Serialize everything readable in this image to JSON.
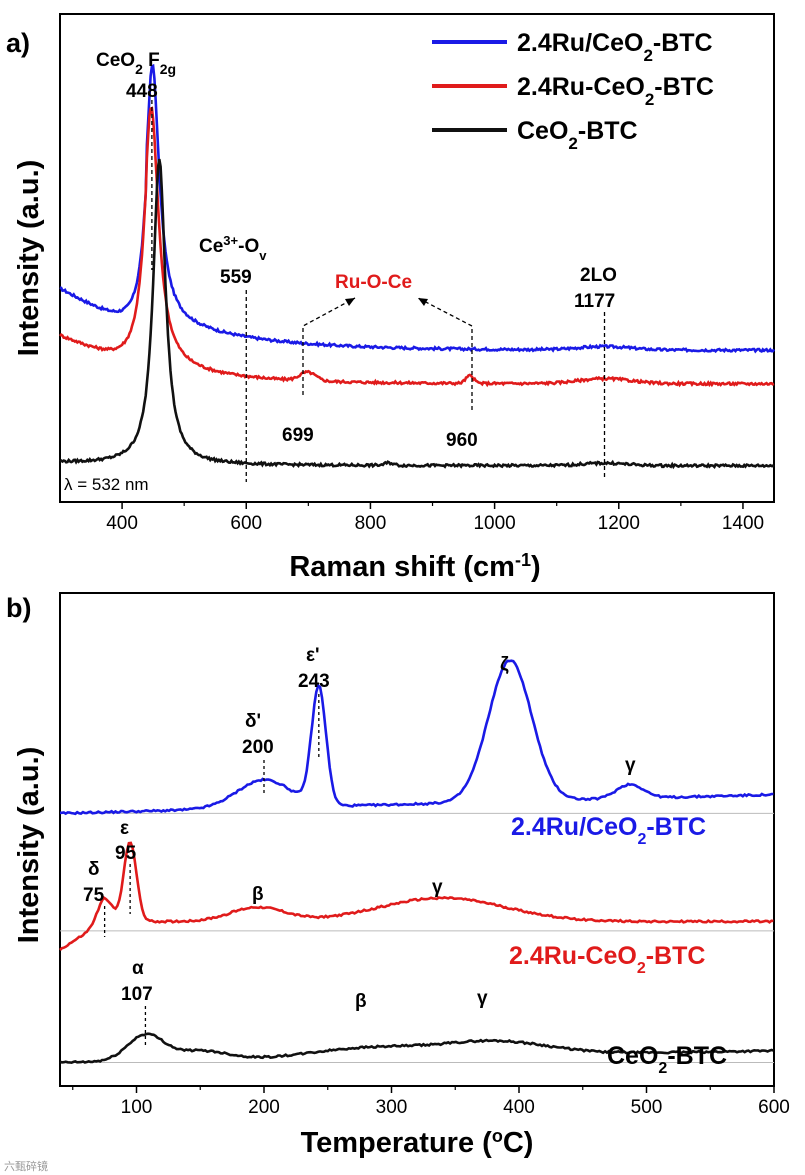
{
  "colors": {
    "blue": "#1a1ae6",
    "red": "#e01b1b",
    "black": "#111111",
    "redtext": "#e01b1b"
  },
  "watermark": "六甄碎镜",
  "chart_data": [
    {
      "panel_label": "a)",
      "type": "line",
      "xlabel": "Raman shift (cm",
      "xlabel_sup": "-1",
      "xlabel_end": ")",
      "ylabel": "Intensity (a.u.)",
      "xlim": [
        300,
        1450
      ],
      "xticks": [
        400,
        600,
        800,
        1000,
        1200,
        1400
      ],
      "ylim": [
        0,
        1
      ],
      "lambda_note": "λ = 532 nm",
      "legend": [
        {
          "main": "2.4Ru/CeO",
          "sub": "2",
          "end": "-BTC",
          "color": "blue"
        },
        {
          "main": "2.4Ru-CeO",
          "sub": "2",
          "end": "-BTC",
          "color": "red"
        },
        {
          "main": "CeO",
          "sub": "2",
          "end": "-BTC",
          "color": "black"
        }
      ],
      "series": [
        {
          "name": "2.4Ru/CeO2-BTC",
          "color": "blue",
          "baseline": 0.29,
          "tail": 0.22,
          "tailx": 620,
          "peaks": [
            [
              449,
              0.6,
              13
            ]
          ],
          "bumps": [
            [
              1177,
              0.008,
              60
            ]
          ]
        },
        {
          "name": "2.4Ru-CeO2-BTC",
          "color": "red",
          "baseline": 0.21,
          "tail": 0.17,
          "tailx": 560,
          "peaks": [
            [
              447,
              0.61,
              14
            ]
          ],
          "bumps": [
            [
              699,
              0.02,
              18
            ],
            [
              960,
              0.018,
              9
            ],
            [
              1177,
              0.012,
              60
            ]
          ]
        },
        {
          "name": "CeO2-BTC",
          "color": "black",
          "baseline": 0.015,
          "tail": 0.01,
          "tailx": 560,
          "peaks": [
            [
              460,
              0.73,
              12
            ]
          ],
          "bumps": [
            [
              830,
              0.006,
              10
            ],
            [
              1177,
              0.006,
              50
            ]
          ]
        }
      ],
      "annotations": {
        "ceo2": {
          "pre": "CeO",
          "sub": "2",
          "mid": " F",
          "sub2": "2g",
          "value": "448"
        },
        "ce3": {
          "pre": "Ce",
          "sup": "3+",
          "mid": "-O",
          "sub": "v",
          "value": "559"
        },
        "ruoce": "Ru-O-Ce",
        "p699": "699",
        "p960": "960",
        "lo": "2LO",
        "lo_val": "1177"
      }
    },
    {
      "panel_label": "b)",
      "type": "line",
      "xlabel": "Temperature (",
      "xlabel_sup": "o",
      "xlabel_end": "C)",
      "ylabel": "Intensity (a.u.)",
      "xlim": [
        40,
        600
      ],
      "xticks": [
        100,
        200,
        300,
        400,
        500,
        600
      ],
      "ylim": [
        0,
        1
      ],
      "series": [
        {
          "name": "2.4Ru/CeO2-BTC",
          "color": "blue",
          "offset": 0.58,
          "peaks": [
            [
              243,
              0.25,
              8
            ],
            [
              393,
              0.3,
              24
            ],
            [
              200,
              0.06,
              30
            ],
            [
              487,
              0.03,
              15
            ]
          ],
          "ramp": [
            [
              40,
              0
            ],
            [
              600,
              0.04
            ]
          ]
        },
        {
          "name": "2.4Ru-CeO2-BTC",
          "color": "red",
          "offset": 0.33,
          "peaks": [
            [
              95,
              0.17,
              7
            ],
            [
              75,
              0.05,
              8
            ],
            [
              195,
              0.03,
              30
            ],
            [
              340,
              0.05,
              70
            ]
          ],
          "ramp": [
            [
              40,
              -0.04
            ],
            [
              75,
              0.02
            ]
          ]
        },
        {
          "name": "CeO2-BTC",
          "color": "black",
          "offset": 0.05,
          "peaks": [
            [
              107,
              0.055,
              20
            ],
            [
              150,
              0.02,
              30
            ],
            [
              280,
              0.02,
              60
            ],
            [
              380,
              0.03,
              60
            ]
          ],
          "ramp": [
            [
              40,
              0
            ],
            [
              600,
              0.025
            ]
          ]
        }
      ],
      "annotations": {
        "blue_name": {
          "main": "2.4Ru/CeO",
          "sub": "2",
          "end": "-BTC"
        },
        "red_name": {
          "main": "2.4Ru-CeO",
          "sub": "2",
          "end": "-BTC"
        },
        "black_name": {
          "main": "CeO",
          "sub": "2",
          "end": "-BTC"
        },
        "d_prime": "δ'",
        "d_prime_val": "200",
        "e_prime": "ε'",
        "e_prime_val": "243",
        "zeta": "ζ",
        "gamma_blue": "γ",
        "delta": "δ",
        "delta_val": "75",
        "eps": "ε",
        "eps_val": "95",
        "beta_red": "β",
        "gamma_red": "γ",
        "alpha": "α",
        "alpha_val": "107",
        "beta_black": "β",
        "gamma_black": "γ"
      }
    }
  ]
}
